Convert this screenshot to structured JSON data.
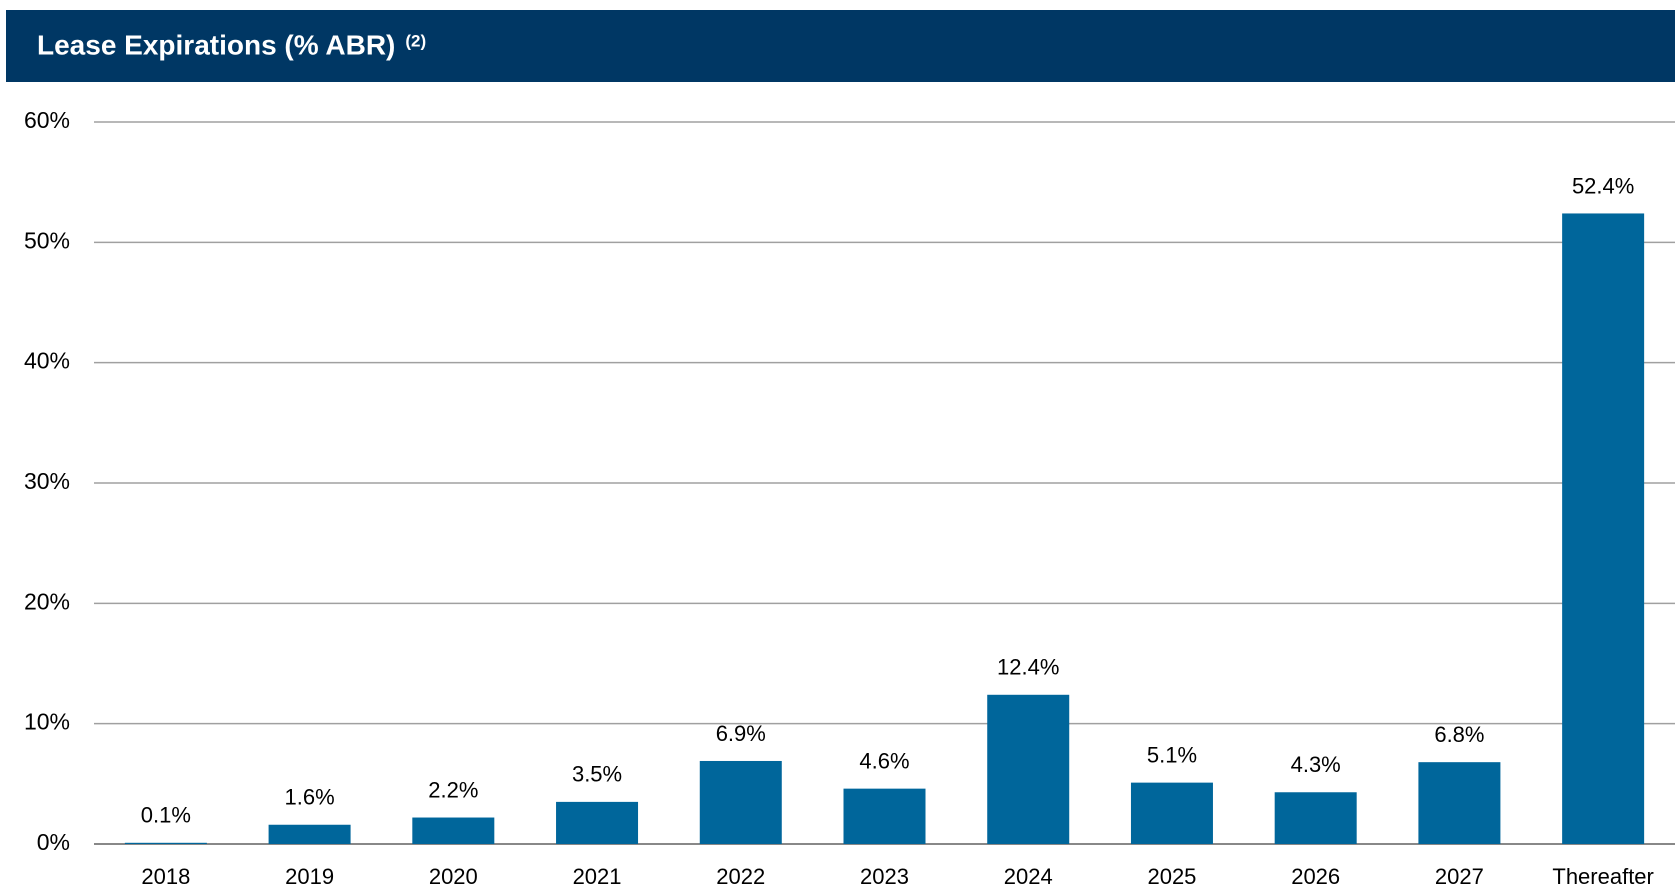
{
  "chart_data": {
    "type": "bar",
    "title": "Lease Expirations (% ABR)",
    "title_note": "(2)",
    "categories": [
      "2018",
      "2019",
      "2020",
      "2021",
      "2022",
      "2023",
      "2024",
      "2025",
      "2026",
      "2027",
      "Thereafter"
    ],
    "values": [
      0.1,
      1.6,
      2.2,
      3.5,
      6.9,
      4.6,
      12.4,
      5.1,
      4.3,
      6.8,
      52.4
    ],
    "value_labels": [
      "0.1%",
      "1.6%",
      "2.2%",
      "3.5%",
      "6.9%",
      "4.6%",
      "12.4%",
      "5.1%",
      "4.3%",
      "6.8%",
      "52.4%"
    ],
    "color": "#00669b",
    "header_color": "#003764",
    "ylim": [
      0,
      60
    ],
    "yticks": [
      {
        "value": 0,
        "label": "0%"
      },
      {
        "value": 10,
        "label": "10%"
      },
      {
        "value": 20,
        "label": "20%"
      },
      {
        "value": 30,
        "label": "30%"
      },
      {
        "value": 40,
        "label": "40%"
      },
      {
        "value": 50,
        "label": "50%"
      },
      {
        "value": 60,
        "label": "60%"
      }
    ],
    "grid": true
  }
}
